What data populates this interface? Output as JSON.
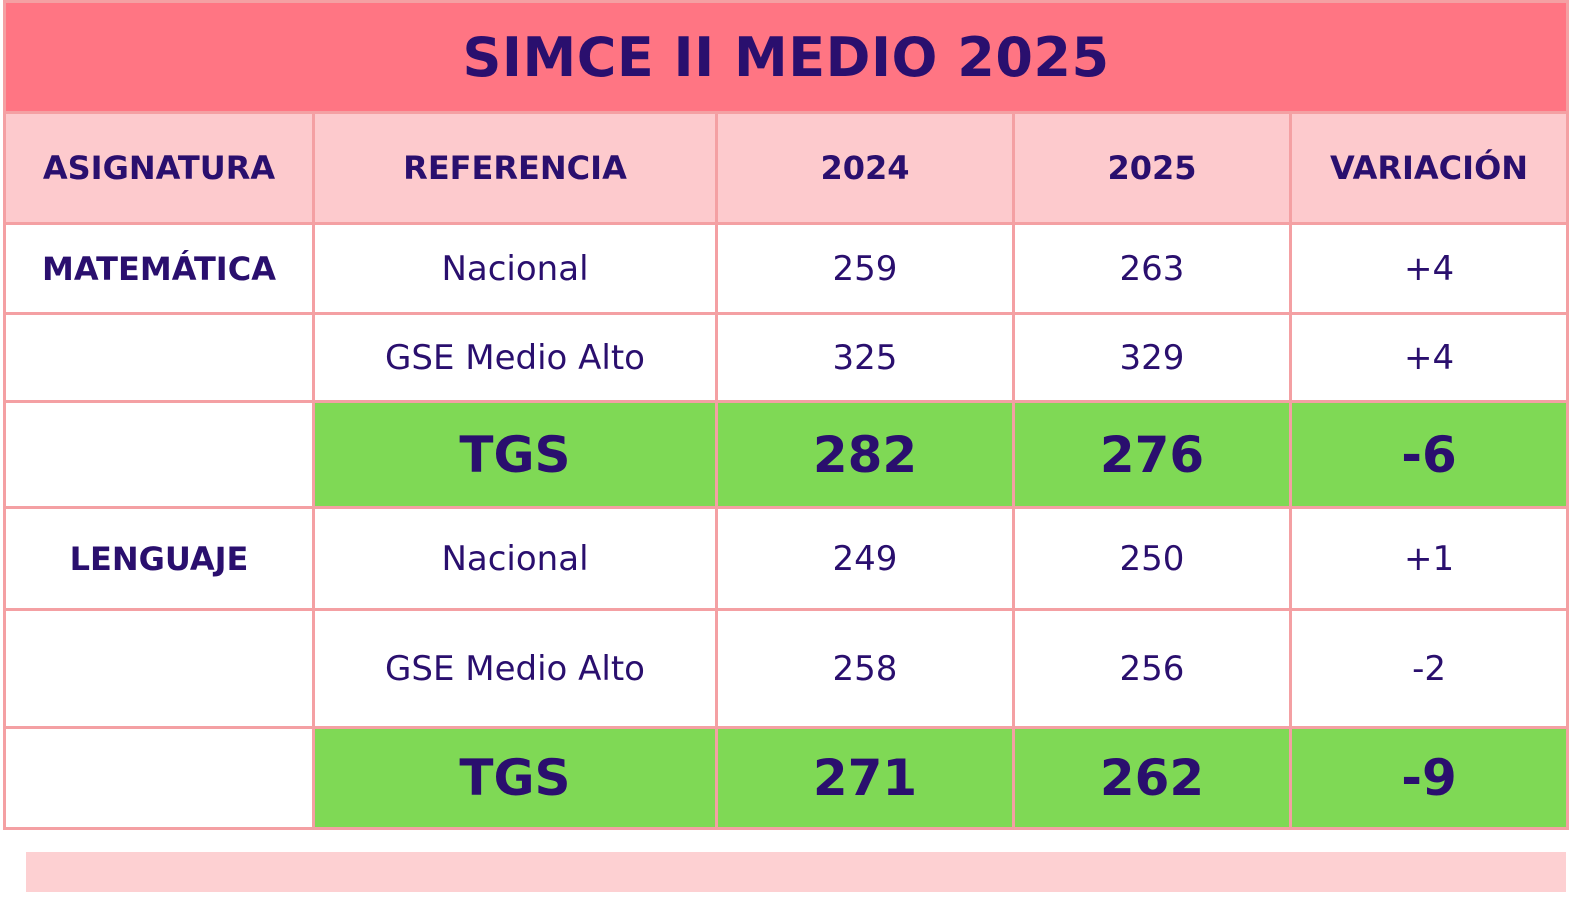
{
  "title": "SIMCE II MEDIO 2025",
  "headers": [
    "ASIGNATURA",
    "REFERENCIA",
    "2024",
    "2025",
    "VARIACIÓN"
  ],
  "rows": [
    {
      "subject": "MATEMÁTICA",
      "reference": "Nacional",
      "y2024": "259",
      "y2025": "263",
      "variation": "+4"
    },
    {
      "subject": "",
      "reference": "GSE Medio Alto",
      "y2024": "325",
      "y2025": "329",
      "variation": "+4"
    },
    {
      "subject": "",
      "reference": "TGS",
      "y2024": "282",
      "y2025": "276",
      "variation": "-6"
    },
    {
      "subject": "LENGUAJE",
      "reference": "Nacional",
      "y2024": "249",
      "y2025": "250",
      "variation": "+1"
    },
    {
      "subject": "",
      "reference": "GSE Medio Alto",
      "y2024": "258",
      "y2025": "256",
      "variation": "-2"
    },
    {
      "subject": "",
      "reference": "TGS",
      "y2024": "271",
      "y2025": "262",
      "variation": "-9"
    }
  ],
  "colors": {
    "title_bg": "#ff7583",
    "header_bg": "#fdcacd",
    "highlight_bg": "#7fd955",
    "border": "#f4a0a3",
    "text": "#2a0f6e"
  }
}
